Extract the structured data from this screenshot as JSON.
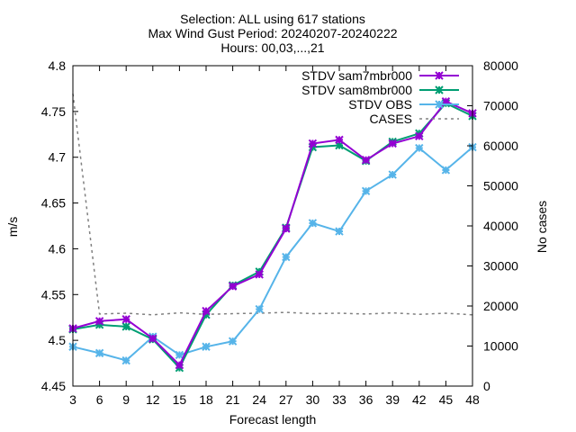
{
  "chart_data": {
    "type": "line",
    "title_lines": [
      "Selection: ALL using   617 stations",
      "Max Wind Gust   Period: 20240207-20240222",
      "Hours: 00,03,...,21"
    ],
    "xlabel": "Forecast length",
    "ylabel": "m/s",
    "y2label": "No cases",
    "x": [
      3,
      6,
      9,
      12,
      15,
      18,
      21,
      24,
      27,
      30,
      33,
      36,
      39,
      42,
      45,
      48
    ],
    "xlim": [
      3,
      48
    ],
    "ylim": [
      4.45,
      4.8
    ],
    "y2lim": [
      0,
      80000
    ],
    "yticks": [
      "4.45",
      "4.5",
      "4.55",
      "4.6",
      "4.65",
      "4.7",
      "4.75",
      "4.8"
    ],
    "y2ticks": [
      "0",
      "10000",
      "20000",
      "30000",
      "40000",
      "50000",
      "60000",
      "70000",
      "80000"
    ],
    "xticks": [
      "3",
      "6",
      "9",
      "12",
      "15",
      "18",
      "21",
      "24",
      "27",
      "30",
      "33",
      "36",
      "39",
      "42",
      "45",
      "48"
    ],
    "legend_position": "top-right",
    "series": [
      {
        "name": "STDV sam7mbr000",
        "color": "#9400d3",
        "axis": "y1",
        "marker": "star",
        "values": [
          4.513,
          4.521,
          4.523,
          4.502,
          4.473,
          4.532,
          4.559,
          4.572,
          4.622,
          4.715,
          4.719,
          4.697,
          4.715,
          4.723,
          4.761,
          4.748
        ]
      },
      {
        "name": "STDV sam8mbr000",
        "color": "#009e73",
        "axis": "y1",
        "marker": "star",
        "values": [
          4.512,
          4.517,
          4.515,
          4.501,
          4.47,
          4.528,
          4.56,
          4.575,
          4.623,
          4.711,
          4.713,
          4.696,
          4.717,
          4.726,
          4.759,
          4.745
        ]
      },
      {
        "name": "STDV OBS",
        "color": "#56b4e9",
        "axis": "y1",
        "marker": "star",
        "values": [
          4.493,
          4.486,
          4.478,
          4.504,
          4.484,
          4.493,
          4.499,
          4.534,
          4.591,
          4.628,
          4.619,
          4.663,
          4.681,
          4.71,
          4.686,
          4.711
        ]
      },
      {
        "name": "CASES",
        "color": "#808080",
        "axis": "y2",
        "dashed": true,
        "values": [
          73000,
          18000,
          18200,
          17800,
          18300,
          17900,
          18100,
          18200,
          18400,
          18100,
          18200,
          18000,
          18300,
          17900,
          18200,
          17800
        ]
      }
    ]
  }
}
